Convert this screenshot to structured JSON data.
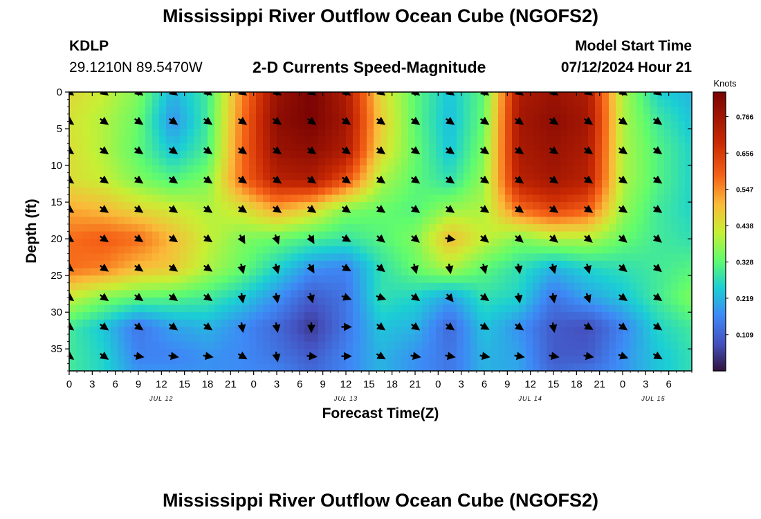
{
  "header": {
    "title": "Mississippi River Outflow Ocean Cube (NGOFS2)",
    "station": "KDLP",
    "coordinates": "29.1210N  89.5470W",
    "subtitle": "2-D Currents Speed-Magnitude",
    "start_label": "Model Start Time",
    "start_value": "07/12/2024 Hour 21"
  },
  "footer": {
    "title": "Mississippi River Outflow Ocean Cube (NGOFS2)"
  },
  "colors": {
    "background": "#ffffff",
    "axis": "#000000",
    "arrow": "#000000"
  },
  "chart_data": {
    "type": "heatmap",
    "xlabel": "Forecast Time(Z)",
    "ylabel": "Depth (ft)",
    "x_range_hours": [
      0,
      81
    ],
    "y_range_ft": [
      0,
      38
    ],
    "x_ticks": [
      {
        "hour": 0,
        "label": "0"
      },
      {
        "hour": 3,
        "label": "3"
      },
      {
        "hour": 6,
        "label": "6"
      },
      {
        "hour": 9,
        "label": "9"
      },
      {
        "hour": 12,
        "label": "12"
      },
      {
        "hour": 15,
        "label": "15"
      },
      {
        "hour": 18,
        "label": "18"
      },
      {
        "hour": 21,
        "label": "21"
      },
      {
        "hour": 24,
        "label": "0"
      },
      {
        "hour": 27,
        "label": "3"
      },
      {
        "hour": 30,
        "label": "6"
      },
      {
        "hour": 33,
        "label": "9"
      },
      {
        "hour": 36,
        "label": "12"
      },
      {
        "hour": 39,
        "label": "15"
      },
      {
        "hour": 42,
        "label": "18"
      },
      {
        "hour": 45,
        "label": "21"
      },
      {
        "hour": 48,
        "label": "0"
      },
      {
        "hour": 51,
        "label": "3"
      },
      {
        "hour": 54,
        "label": "6"
      },
      {
        "hour": 57,
        "label": "9"
      },
      {
        "hour": 60,
        "label": "12"
      },
      {
        "hour": 63,
        "label": "15"
      },
      {
        "hour": 66,
        "label": "18"
      },
      {
        "hour": 69,
        "label": "21"
      },
      {
        "hour": 72,
        "label": "0"
      },
      {
        "hour": 75,
        "label": "3"
      },
      {
        "hour": 78,
        "label": "6"
      }
    ],
    "y_ticks": [
      0,
      5,
      10,
      15,
      20,
      25,
      30,
      35
    ],
    "date_labels": [
      {
        "hour": 12,
        "label": "JUL 12"
      },
      {
        "hour": 36,
        "label": "JUL 13"
      },
      {
        "hour": 60,
        "label": "JUL 14"
      },
      {
        "hour": 76,
        "label": "JUL 15"
      }
    ],
    "colorbar": {
      "title": "Knots",
      "min": 0.0,
      "max": 0.84,
      "ticks": [
        0.109,
        0.219,
        0.328,
        0.438,
        0.547,
        0.656,
        0.766
      ]
    },
    "depths_ft": [
      0,
      4,
      8,
      12,
      16,
      20,
      24,
      28,
      32,
      36,
      38
    ],
    "times_hours": [
      0,
      4.5,
      9,
      13.5,
      18,
      22.5,
      27,
      31.5,
      36,
      40.5,
      45,
      49.5,
      54,
      58.5,
      63,
      67.5,
      72,
      76.5,
      81
    ],
    "speed_knots": [
      [
        0.46,
        0.42,
        0.36,
        0.22,
        0.3,
        0.55,
        0.78,
        0.84,
        0.74,
        0.46,
        0.33,
        0.24,
        0.33,
        0.74,
        0.78,
        0.74,
        0.4,
        0.26,
        0.22
      ],
      [
        0.44,
        0.4,
        0.34,
        0.18,
        0.3,
        0.57,
        0.8,
        0.84,
        0.76,
        0.48,
        0.33,
        0.23,
        0.34,
        0.76,
        0.8,
        0.76,
        0.4,
        0.3,
        0.24
      ],
      [
        0.45,
        0.4,
        0.33,
        0.24,
        0.31,
        0.58,
        0.78,
        0.8,
        0.74,
        0.46,
        0.34,
        0.24,
        0.36,
        0.75,
        0.78,
        0.74,
        0.4,
        0.32,
        0.26
      ],
      [
        0.45,
        0.42,
        0.36,
        0.32,
        0.36,
        0.58,
        0.72,
        0.74,
        0.62,
        0.4,
        0.33,
        0.28,
        0.38,
        0.72,
        0.76,
        0.72,
        0.4,
        0.32,
        0.26
      ],
      [
        0.52,
        0.5,
        0.46,
        0.43,
        0.4,
        0.44,
        0.52,
        0.46,
        0.36,
        0.34,
        0.32,
        0.38,
        0.4,
        0.58,
        0.64,
        0.6,
        0.38,
        0.3,
        0.26
      ],
      [
        0.58,
        0.6,
        0.58,
        0.5,
        0.42,
        0.36,
        0.34,
        0.31,
        0.29,
        0.32,
        0.36,
        0.5,
        0.42,
        0.36,
        0.4,
        0.4,
        0.34,
        0.3,
        0.28
      ],
      [
        0.58,
        0.56,
        0.5,
        0.48,
        0.4,
        0.34,
        0.26,
        0.18,
        0.16,
        0.28,
        0.34,
        0.4,
        0.33,
        0.28,
        0.22,
        0.26,
        0.28,
        0.3,
        0.32
      ],
      [
        0.42,
        0.36,
        0.33,
        0.32,
        0.3,
        0.25,
        0.18,
        0.1,
        0.14,
        0.28,
        0.26,
        0.2,
        0.28,
        0.26,
        0.14,
        0.2,
        0.24,
        0.3,
        0.36
      ],
      [
        0.3,
        0.24,
        0.14,
        0.2,
        0.22,
        0.17,
        0.12,
        0.05,
        0.14,
        0.24,
        0.22,
        0.12,
        0.24,
        0.18,
        0.1,
        0.08,
        0.16,
        0.26,
        0.3
      ],
      [
        0.3,
        0.26,
        0.16,
        0.16,
        0.18,
        0.17,
        0.14,
        0.1,
        0.16,
        0.22,
        0.18,
        0.14,
        0.22,
        0.2,
        0.1,
        0.1,
        0.18,
        0.24,
        0.28
      ],
      [
        0.3,
        0.26,
        0.18,
        0.18,
        0.18,
        0.17,
        0.16,
        0.12,
        0.16,
        0.22,
        0.18,
        0.14,
        0.22,
        0.2,
        0.12,
        0.14,
        0.18,
        0.24,
        0.28
      ]
    ],
    "arrow_times_hours": [
      0,
      4.5,
      9,
      13.5,
      18,
      22.5,
      27,
      31.5,
      36,
      40.5,
      45,
      49.5,
      54,
      58.5,
      63,
      67.5,
      72,
      76.5
    ],
    "arrow_depths_ft": [
      0,
      4,
      8,
      12,
      16,
      20,
      24,
      28,
      32,
      36
    ],
    "arrow_direction_deg": [
      [
        125,
        125,
        125,
        125,
        125,
        125,
        125,
        125,
        125,
        125,
        125,
        125,
        125,
        125,
        125,
        125,
        125,
        125
      ],
      [
        125,
        125,
        125,
        125,
        125,
        125,
        125,
        125,
        125,
        125,
        125,
        125,
        125,
        125,
        125,
        125,
        125,
        125
      ],
      [
        125,
        125,
        125,
        125,
        125,
        125,
        125,
        125,
        125,
        125,
        125,
        125,
        125,
        125,
        125,
        125,
        125,
        125
      ],
      [
        125,
        125,
        125,
        125,
        125,
        125,
        125,
        125,
        125,
        125,
        125,
        125,
        125,
        125,
        125,
        125,
        125,
        125
      ],
      [
        125,
        125,
        125,
        125,
        125,
        125,
        125,
        125,
        125,
        125,
        125,
        125,
        125,
        125,
        125,
        125,
        125,
        125
      ],
      [
        125,
        125,
        125,
        125,
        125,
        150,
        160,
        150,
        120,
        130,
        130,
        100,
        130,
        130,
        130,
        130,
        130,
        130
      ],
      [
        125,
        125,
        125,
        125,
        125,
        165,
        165,
        150,
        120,
        130,
        165,
        170,
        165,
        170,
        165,
        165,
        130,
        130
      ],
      [
        125,
        125,
        125,
        125,
        125,
        170,
        170,
        165,
        110,
        110,
        125,
        140,
        125,
        170,
        170,
        160,
        125,
        125
      ],
      [
        125,
        125,
        125,
        125,
        125,
        170,
        170,
        180,
        90,
        125,
        125,
        125,
        120,
        125,
        170,
        120,
        125,
        125
      ],
      [
        125,
        125,
        100,
        100,
        100,
        120,
        170,
        95,
        90,
        120,
        100,
        100,
        100,
        100,
        100,
        100,
        110,
        120
      ]
    ]
  }
}
